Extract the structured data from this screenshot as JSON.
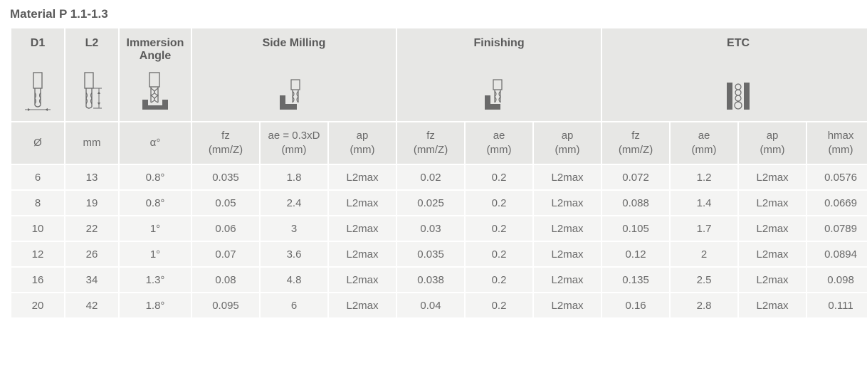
{
  "title": "Material P 1.1-1.3",
  "header_groups": {
    "d1": "D1",
    "l2": "L2",
    "immersion": "Immersion Angle",
    "side_milling": "Side Milling",
    "finishing": "Finishing",
    "etc": "ETC"
  },
  "subheaders": {
    "d1": "Ø",
    "l2": "mm",
    "angle": "α°",
    "sm_fz": "fz\n(mm/Z)",
    "sm_ae": "ae = 0.3xD\n(mm)",
    "sm_ap": "ap\n(mm)",
    "fin_fz": "fz\n(mm/Z)",
    "fin_ae": "ae\n(mm)",
    "fin_ap": "ap\n(mm)",
    "etc_fz": "fz\n(mm/Z)",
    "etc_ae": "ae\n(mm)",
    "etc_ap": "ap\n(mm)",
    "etc_hmax": "hmax\n(mm)"
  },
  "rows": [
    {
      "d1": "6",
      "l2": "13",
      "angle": "0.8°",
      "sm_fz": "0.035",
      "sm_ae": "1.8",
      "sm_ap": "L2max",
      "fin_fz": "0.02",
      "fin_ae": "0.2",
      "fin_ap": "L2max",
      "etc_fz": "0.072",
      "etc_ae": "1.2",
      "etc_ap": "L2max",
      "etc_hmax": "0.0576"
    },
    {
      "d1": "8",
      "l2": "19",
      "angle": "0.8°",
      "sm_fz": "0.05",
      "sm_ae": "2.4",
      "sm_ap": "L2max",
      "fin_fz": "0.025",
      "fin_ae": "0.2",
      "fin_ap": "L2max",
      "etc_fz": "0.088",
      "etc_ae": "1.4",
      "etc_ap": "L2max",
      "etc_hmax": "0.0669"
    },
    {
      "d1": "10",
      "l2": "22",
      "angle": "1°",
      "sm_fz": "0.06",
      "sm_ae": "3",
      "sm_ap": "L2max",
      "fin_fz": "0.03",
      "fin_ae": "0.2",
      "fin_ap": "L2max",
      "etc_fz": "0.105",
      "etc_ae": "1.7",
      "etc_ap": "L2max",
      "etc_hmax": "0.0789"
    },
    {
      "d1": "12",
      "l2": "26",
      "angle": "1°",
      "sm_fz": "0.07",
      "sm_ae": "3.6",
      "sm_ap": "L2max",
      "fin_fz": "0.035",
      "fin_ae": "0.2",
      "fin_ap": "L2max",
      "etc_fz": "0.12",
      "etc_ae": "2",
      "etc_ap": "L2max",
      "etc_hmax": "0.0894"
    },
    {
      "d1": "16",
      "l2": "34",
      "angle": "1.3°",
      "sm_fz": "0.08",
      "sm_ae": "4.8",
      "sm_ap": "L2max",
      "fin_fz": "0.038",
      "fin_ae": "0.2",
      "fin_ap": "L2max",
      "etc_fz": "0.135",
      "etc_ae": "2.5",
      "etc_ap": "L2max",
      "etc_hmax": "0.098"
    },
    {
      "d1": "20",
      "l2": "42",
      "angle": "1.8°",
      "sm_fz": "0.095",
      "sm_ae": "6",
      "sm_ap": "L2max",
      "fin_fz": "0.04",
      "fin_ae": "0.2",
      "fin_ap": "L2max",
      "etc_fz": "0.16",
      "etc_ae": "2.8",
      "etc_ap": "L2max",
      "etc_hmax": "0.111"
    }
  ],
  "style": {
    "header_bg": "#e7e7e5",
    "body_bg": "#f4f4f3",
    "text_color": "#6a6a6a",
    "icon_stroke": "#6a6a6a",
    "icon_fill": "#6a6a6a"
  }
}
